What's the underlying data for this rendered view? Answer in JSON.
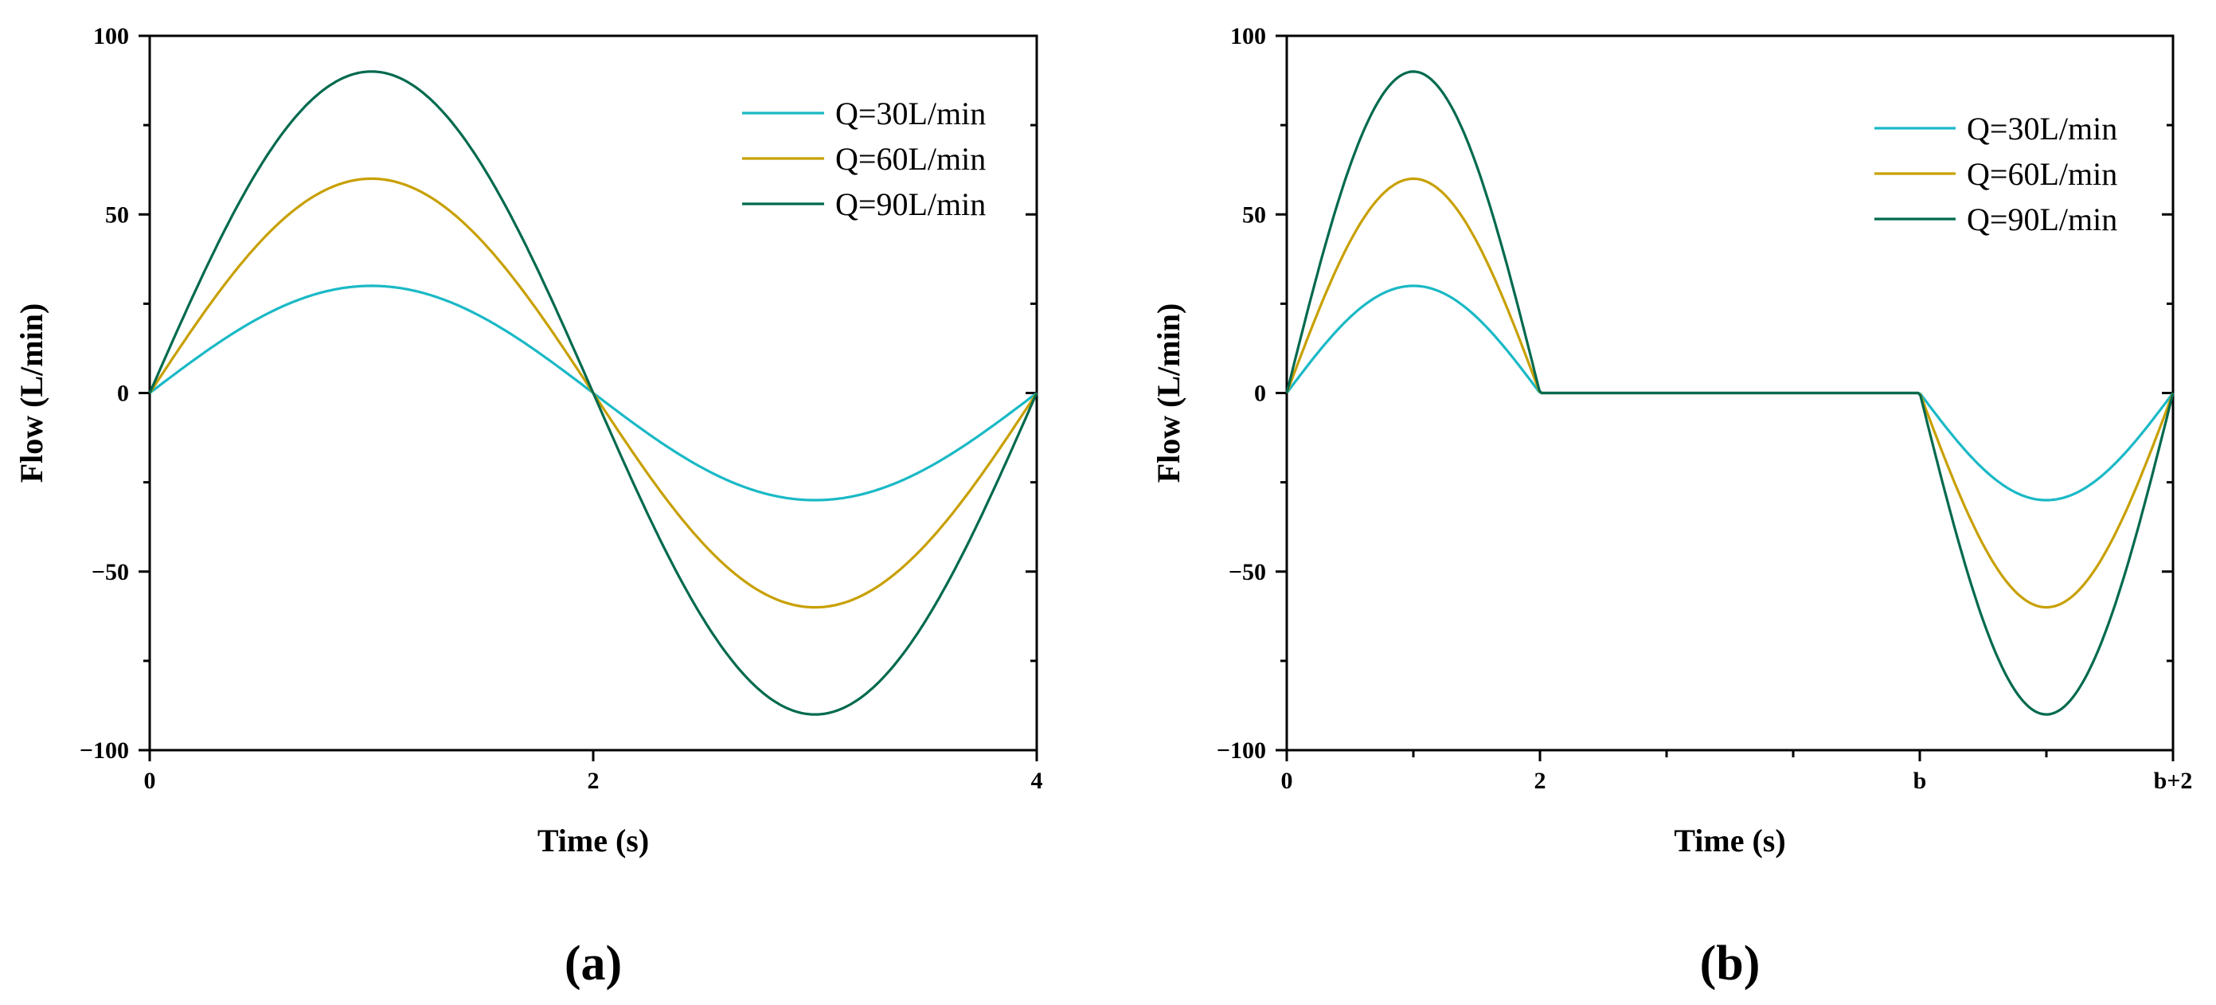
{
  "colors": {
    "q30": "#1ab9c6",
    "q60": "#c8a000",
    "q90": "#006a4e"
  },
  "chart_data": [
    {
      "type": "line",
      "panel_label": "(a)",
      "xlabel": "Time (s)",
      "ylabel": "Flow (L/min)",
      "xlim": [
        0,
        4
      ],
      "ylim": [
        -100,
        100
      ],
      "x_ticks": [
        {
          "value": 0,
          "label": "0"
        },
        {
          "value": 2,
          "label": "2"
        },
        {
          "value": 4,
          "label": "4"
        }
      ],
      "x_minor_ticks": [],
      "y_ticks": [
        {
          "value": 100,
          "label": "100"
        },
        {
          "value": 50,
          "label": "50"
        },
        {
          "value": 0,
          "label": "0"
        },
        {
          "value": -50,
          "label": "−50"
        },
        {
          "value": -100,
          "label": "−100"
        }
      ],
      "y_minor_ticks": [
        75,
        25,
        -25,
        -75
      ],
      "legend_position": "top-right",
      "series": [
        {
          "name": "Q=30L/min",
          "color_key": "q30",
          "x": [
            0,
            0.5,
            1,
            1.5,
            2,
            2.5,
            3,
            3.5,
            4
          ],
          "y": [
            0,
            21.2,
            30,
            21.2,
            0,
            -21.2,
            -30,
            -21.2,
            0
          ]
        },
        {
          "name": "Q=60L/min",
          "color_key": "q60",
          "x": [
            0,
            0.5,
            1,
            1.5,
            2,
            2.5,
            3,
            3.5,
            4
          ],
          "y": [
            0,
            42.4,
            60,
            42.4,
            0,
            -42.4,
            -60,
            -42.4,
            0
          ]
        },
        {
          "name": "Q=90L/min",
          "color_key": "q90",
          "x": [
            0,
            0.5,
            1,
            1.5,
            2,
            2.5,
            3,
            3.5,
            4
          ],
          "y": [
            0,
            63.6,
            90,
            63.6,
            0,
            -63.6,
            -90,
            -63.6,
            0
          ]
        }
      ]
    },
    {
      "type": "line",
      "panel_label": "(b)",
      "xlabel": "Time (s)",
      "ylabel": "Flow (L/min)",
      "xlim": [
        0,
        7
      ],
      "ylim": [
        -100,
        100
      ],
      "x_ticks": [
        {
          "value": 0,
          "label": "0"
        },
        {
          "value": 2,
          "label": "2"
        },
        {
          "value": 5,
          "label": "b"
        },
        {
          "value": 7,
          "label": "b+2"
        }
      ],
      "x_minor_ticks": [
        1,
        3,
        4,
        6
      ],
      "y_ticks": [
        {
          "value": 100,
          "label": "100"
        },
        {
          "value": 50,
          "label": "50"
        },
        {
          "value": 0,
          "label": "0"
        },
        {
          "value": -50,
          "label": "−50"
        },
        {
          "value": -100,
          "label": "−100"
        }
      ],
      "y_minor_ticks": [
        75,
        25,
        -25,
        -75
      ],
      "legend_position": "top-right",
      "series": [
        {
          "name": "Q=30L/min",
          "color_key": "q30",
          "x": [
            0,
            0.5,
            1,
            1.5,
            2,
            5,
            5.5,
            6,
            6.5,
            7
          ],
          "y": [
            0,
            21.2,
            30,
            21.2,
            0,
            0,
            -21.2,
            -30,
            -21.2,
            0
          ]
        },
        {
          "name": "Q=60L/min",
          "color_key": "q60",
          "x": [
            0,
            0.5,
            1,
            1.5,
            2,
            5,
            5.5,
            6,
            6.5,
            7
          ],
          "y": [
            0,
            42.4,
            60,
            42.4,
            0,
            0,
            -42.4,
            -60,
            -42.4,
            0
          ]
        },
        {
          "name": "Q=90L/min",
          "color_key": "q90",
          "x": [
            0,
            0.5,
            1,
            1.5,
            2,
            5,
            5.5,
            6,
            6.5,
            7
          ],
          "y": [
            0,
            63.6,
            90,
            63.6,
            0,
            0,
            -63.6,
            -90,
            -63.6,
            0
          ]
        }
      ]
    }
  ]
}
